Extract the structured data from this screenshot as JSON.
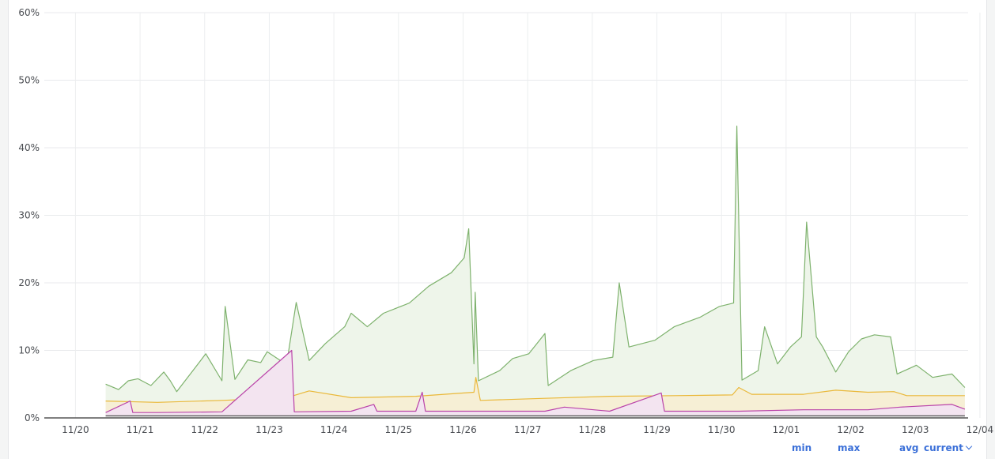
{
  "chart_data": {
    "type": "line",
    "x": [
      "11/20",
      "11/21",
      "11/22",
      "11/23",
      "11/24",
      "11/25",
      "11/26",
      "11/27",
      "11/28",
      "11/29",
      "11/30",
      "12/01",
      "12/02",
      "12/03",
      "12/04"
    ],
    "y_ticks": [
      "0%",
      "10%",
      "20%",
      "30%",
      "40%",
      "50%",
      "60%"
    ],
    "ylim": [
      0,
      60
    ],
    "grid": true,
    "fill_area": true,
    "series": [
      {
        "color": "#7eb26d",
        "fill": "#eef5ea",
        "values": [
          [
            11.2,
            5
          ],
          [
            11.4,
            4.2
          ],
          [
            11.55,
            5.5
          ],
          [
            11.7,
            5.8
          ],
          [
            11.9,
            4.8
          ],
          [
            12.1,
            6.8
          ],
          [
            12.2,
            5.5
          ],
          [
            12.3,
            3.9
          ],
          [
            12.55,
            7
          ],
          [
            12.75,
            9.5
          ],
          [
            13.0,
            5.5
          ],
          [
            13.05,
            16.5
          ],
          [
            13.2,
            5.7
          ],
          [
            13.4,
            8.6
          ],
          [
            13.6,
            8.2
          ],
          [
            13.7,
            9.8
          ],
          [
            14.0,
            7.9
          ],
          [
            14.15,
            17.1
          ],
          [
            14.35,
            8.5
          ],
          [
            14.6,
            11.0
          ],
          [
            14.9,
            13.5
          ],
          [
            15.0,
            15.5
          ],
          [
            15.25,
            13.5
          ],
          [
            15.5,
            15.5
          ],
          [
            15.9,
            17.0
          ],
          [
            16.2,
            19.5
          ],
          [
            16.55,
            21.5
          ],
          [
            16.75,
            23.7
          ],
          [
            16.82,
            28.0
          ],
          [
            16.9,
            8.0
          ],
          [
            16.92,
            18.6
          ],
          [
            16.97,
            5.5
          ],
          [
            17.3,
            7.0
          ],
          [
            17.5,
            8.8
          ],
          [
            17.75,
            9.5
          ],
          [
            18.0,
            12.5
          ],
          [
            18.05,
            4.8
          ],
          [
            18.4,
            7.0
          ],
          [
            18.75,
            8.5
          ],
          [
            19.05,
            9.0
          ],
          [
            19.15,
            20.0
          ],
          [
            19.3,
            10.5
          ],
          [
            19.7,
            11.5
          ],
          [
            20.0,
            13.5
          ],
          [
            20.4,
            14.9
          ],
          [
            20.7,
            16.5
          ],
          [
            20.92,
            17.0
          ],
          [
            20.97,
            43.2
          ],
          [
            21.05,
            5.6
          ],
          [
            21.3,
            7.0
          ],
          [
            21.4,
            13.5
          ],
          [
            21.6,
            8.0
          ],
          [
            21.8,
            10.5
          ],
          [
            21.97,
            12.0
          ],
          [
            22.05,
            29.0
          ],
          [
            22.2,
            12.0
          ],
          [
            22.3,
            10.5
          ],
          [
            22.5,
            6.8
          ],
          [
            22.7,
            9.8
          ],
          [
            22.9,
            11.7
          ],
          [
            23.1,
            12.3
          ],
          [
            23.35,
            12.0
          ],
          [
            23.45,
            6.5
          ],
          [
            23.75,
            7.8
          ],
          [
            24.0,
            6.0
          ],
          [
            24.3,
            6.5
          ],
          [
            24.5,
            4.5
          ]
        ]
      },
      {
        "color": "#eab839",
        "fill": "#f6efd5",
        "values": [
          [
            11.2,
            2.5
          ],
          [
            12.0,
            2.3
          ],
          [
            13.0,
            2.6
          ],
          [
            14.0,
            3.0
          ],
          [
            14.35,
            4.0
          ],
          [
            15.0,
            3.0
          ],
          [
            16.0,
            3.2
          ],
          [
            16.9,
            3.8
          ],
          [
            16.93,
            6.0
          ],
          [
            17.0,
            2.6
          ],
          [
            18.0,
            2.9
          ],
          [
            19.0,
            3.2
          ],
          [
            20.0,
            3.3
          ],
          [
            20.9,
            3.4
          ],
          [
            21.0,
            4.5
          ],
          [
            21.2,
            3.5
          ],
          [
            22.0,
            3.5
          ],
          [
            22.5,
            4.1
          ],
          [
            23.0,
            3.8
          ],
          [
            23.4,
            3.9
          ],
          [
            23.6,
            3.3
          ],
          [
            24.5,
            3.3
          ]
        ]
      },
      {
        "color": "#ba43a9",
        "fill": "#f3e4f0",
        "values": [
          [
            11.2,
            0.8
          ],
          [
            11.58,
            2.5
          ],
          [
            11.62,
            0.8
          ],
          [
            12.0,
            0.8
          ],
          [
            13.0,
            0.9
          ],
          [
            14.08,
            10.0
          ],
          [
            14.12,
            0.9
          ],
          [
            15.0,
            1.0
          ],
          [
            15.35,
            2.0
          ],
          [
            15.4,
            1.0
          ],
          [
            16.0,
            1.0
          ],
          [
            16.1,
            3.8
          ],
          [
            16.15,
            1.0
          ],
          [
            17.0,
            1.0
          ],
          [
            18.0,
            1.0
          ],
          [
            18.3,
            1.6
          ],
          [
            19.0,
            1.0
          ],
          [
            19.8,
            3.7
          ],
          [
            19.85,
            1.0
          ],
          [
            21.0,
            1.0
          ],
          [
            22.0,
            1.2
          ],
          [
            23.0,
            1.2
          ],
          [
            23.5,
            1.6
          ],
          [
            24.3,
            2.0
          ],
          [
            24.5,
            1.3
          ]
        ]
      },
      {
        "color": "#555555",
        "fill": "#ebebeb",
        "values": [
          [
            11.2,
            0.3
          ],
          [
            24.5,
            0.3
          ]
        ]
      }
    ],
    "legend_headers": [
      "min",
      "max",
      "avg",
      "current"
    ]
  }
}
